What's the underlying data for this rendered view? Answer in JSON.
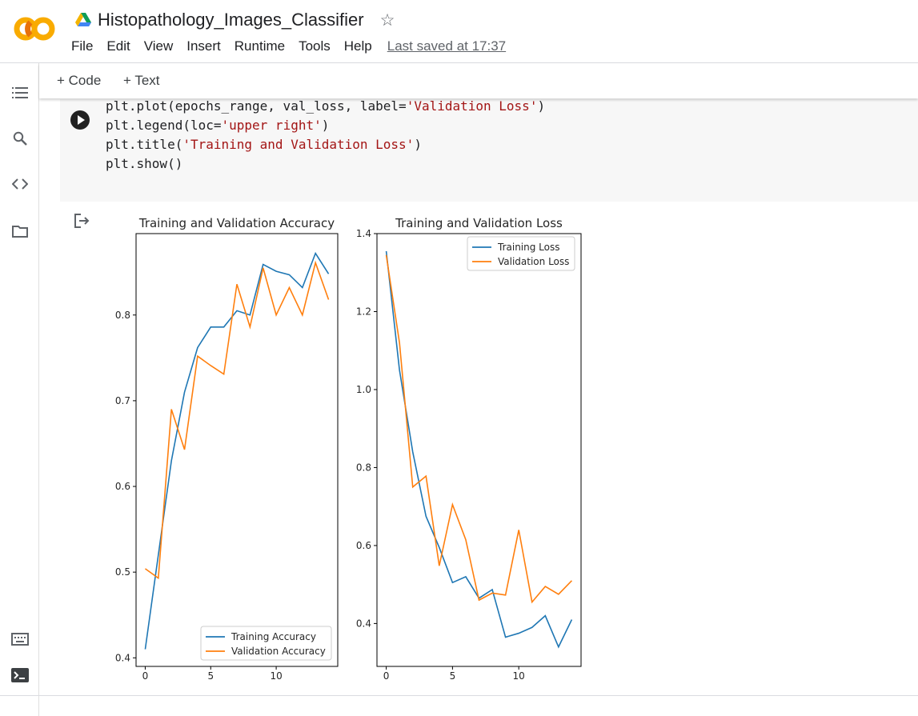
{
  "notebook": {
    "title": "Histopathology_Images_Classifier",
    "menu": [
      "File",
      "Edit",
      "View",
      "Insert",
      "Runtime",
      "Tools",
      "Help"
    ],
    "last_saved": "Last saved at 17:37"
  },
  "toolbar": {
    "add_code": "+ Code",
    "add_text": "+ Text"
  },
  "sidebar": {
    "icons": [
      "table-of-contents-icon",
      "search-icon",
      "code-snippets-icon",
      "files-icon",
      "command-palette-icon",
      "terminal-icon"
    ]
  },
  "cell": {
    "lines": [
      {
        "pre": "plt.plot(epochs_range, val_loss, label=",
        "str": "'Validation Loss'",
        "post": ")"
      },
      {
        "pre": "plt.legend(loc=",
        "str": "'upper right'",
        "post": ")"
      },
      {
        "pre": "plt.title(",
        "str": "'Training and Validation Loss'",
        "post": ")"
      },
      {
        "pre": "plt.show()",
        "str": "",
        "post": ""
      }
    ]
  },
  "colors": {
    "training": "#1f77b4",
    "validation": "#ff7f0e"
  },
  "chart_data": [
    {
      "type": "line",
      "title": "Training and Validation Accuracy",
      "x": [
        0,
        1,
        2,
        3,
        4,
        5,
        6,
        7,
        8,
        9,
        10,
        11,
        12,
        13,
        14
      ],
      "series": [
        {
          "name": "Training Accuracy",
          "values": [
            0.41,
            0.52,
            0.63,
            0.71,
            0.762,
            0.786,
            0.786,
            0.805,
            0.8,
            0.859,
            0.851,
            0.847,
            0.832,
            0.872,
            0.848
          ]
        },
        {
          "name": "Validation Accuracy",
          "values": [
            0.504,
            0.493,
            0.69,
            0.643,
            0.752,
            0.741,
            0.731,
            0.836,
            0.786,
            0.855,
            0.8,
            0.832,
            0.8,
            0.861,
            0.818
          ]
        }
      ],
      "xticks": [
        "0",
        "5",
        "10"
      ],
      "yticks": [
        "0.4",
        "0.5",
        "0.6",
        "0.7",
        "0.8"
      ],
      "xlim": [
        -0.7,
        14.7
      ],
      "ylim": [
        0.39,
        0.895
      ],
      "legend": "lower right"
    },
    {
      "type": "line",
      "title": "Training and Validation Loss",
      "x": [
        0,
        1,
        2,
        3,
        4,
        5,
        6,
        7,
        8,
        9,
        10,
        11,
        12,
        13,
        14
      ],
      "series": [
        {
          "name": "Training Loss",
          "values": [
            1.355,
            1.05,
            0.84,
            0.675,
            0.595,
            0.505,
            0.52,
            0.465,
            0.487,
            0.365,
            0.375,
            0.39,
            0.42,
            0.34,
            0.41
          ]
        },
        {
          "name": "Validation Loss",
          "values": [
            1.345,
            1.12,
            0.75,
            0.778,
            0.548,
            0.705,
            0.615,
            0.46,
            0.478,
            0.473,
            0.64,
            0.455,
            0.495,
            0.475,
            0.51
          ]
        }
      ],
      "xticks": [
        "0",
        "5",
        "10"
      ],
      "yticks": [
        "0.4",
        "0.6",
        "0.8",
        "1.0",
        "1.2",
        "1.4"
      ],
      "xlim": [
        -0.7,
        14.7
      ],
      "ylim": [
        0.29,
        1.4
      ],
      "legend": "upper right"
    }
  ]
}
